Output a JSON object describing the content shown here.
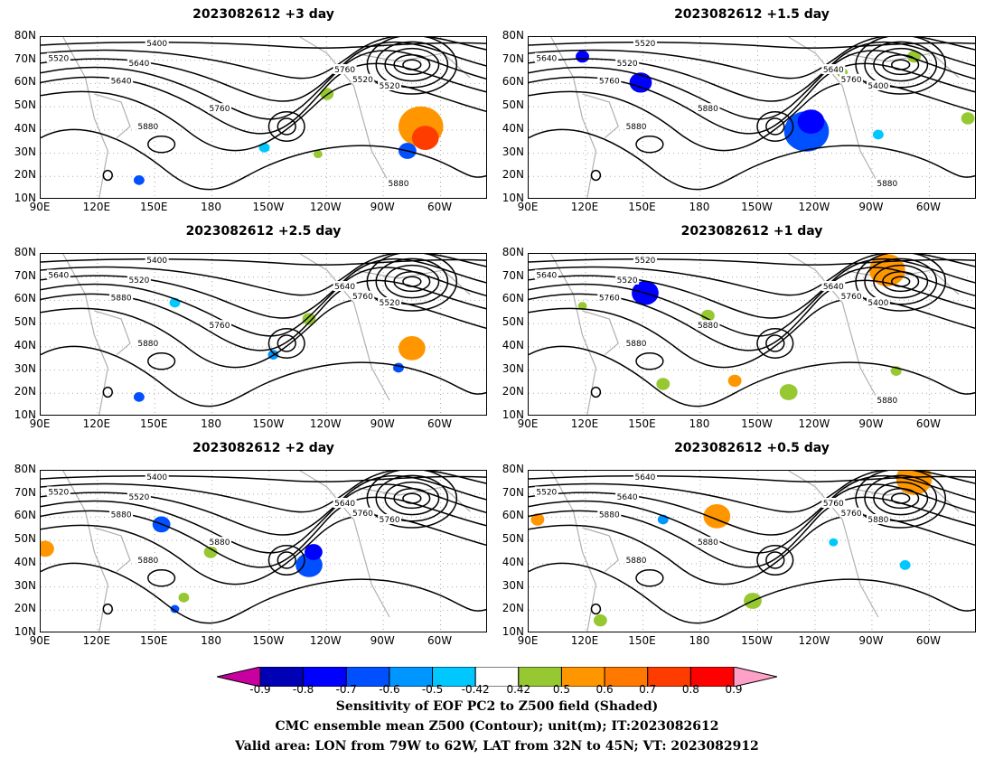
{
  "colors": {
    "neg": [
      "#c800a0",
      "#0000b4",
      "#0000ff",
      "#0050ff",
      "#0096ff",
      "#00c8ff"
    ],
    "mid": "#ffffff",
    "pos": [
      "#96c832",
      "#ff9600",
      "#ff7800",
      "#ff3c00",
      "#ff0000",
      "#ffa0c8"
    ]
  },
  "axes": {
    "lat_labels": [
      "80N",
      "70N",
      "60N",
      "50N",
      "40N",
      "30N",
      "20N",
      "10N"
    ],
    "lon_labels": [
      "90E",
      "120E",
      "150E",
      "180",
      "150W",
      "120W",
      "90W",
      "60W"
    ]
  },
  "panels": [
    {
      "title": "2023082612 +3 day",
      "contour_labels": [
        "5400",
        "5520",
        "5640",
        "5760",
        "5520",
        "5520",
        "5640",
        "5760",
        "5880",
        "5880"
      ]
    },
    {
      "title": "2023082612 +1.5 day",
      "contour_labels": [
        "5520",
        "5640",
        "5520",
        "5640",
        "5760",
        "5400",
        "5760",
        "5880",
        "5880",
        "5880"
      ]
    },
    {
      "title": "2023082612 +2.5 day",
      "contour_labels": [
        "5400",
        "5640",
        "5520",
        "5640",
        "5760",
        "5520",
        "5880",
        "5760",
        "5880"
      ]
    },
    {
      "title": "2023082612 +1 day",
      "contour_labels": [
        "5520",
        "5640",
        "5520",
        "5640",
        "5760",
        "5400",
        "5760",
        "5880",
        "5880",
        "5880"
      ]
    },
    {
      "title": "2023082612 +2 day",
      "contour_labels": [
        "5400",
        "5520",
        "5520",
        "5640",
        "5760",
        "5760",
        "5880",
        "5880",
        "5880"
      ]
    },
    {
      "title": "2023082612 +0.5 day",
      "contour_labels": [
        "5640",
        "5520",
        "5640",
        "5760",
        "5760",
        "5880",
        "5880",
        "5880",
        "5880"
      ]
    }
  ],
  "colorbar": {
    "ticks": [
      "-0.9",
      "-0.8",
      "-0.7",
      "-0.6",
      "-0.5",
      "-0.42",
      "0.42",
      "0.5",
      "0.6",
      "0.7",
      "0.8",
      "0.9"
    ]
  },
  "caption": {
    "line1": "Sensitivity of EOF PC2 to Z500 field (Shaded)",
    "line2": "CMC ensemble mean Z500 (Contour); unit(m); IT:2023082612",
    "line3": "Valid area: LON from 79W to 62W, LAT from 32N to 45N; VT: 2023082912"
  }
}
